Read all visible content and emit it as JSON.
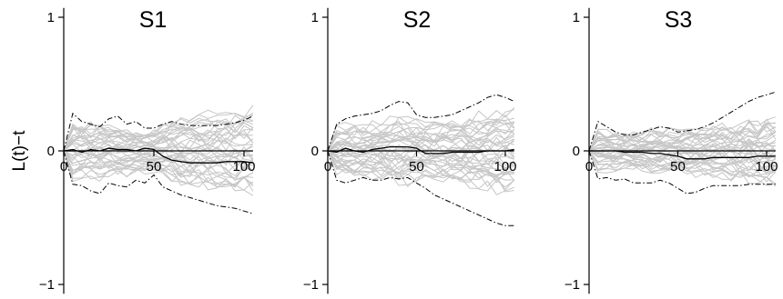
{
  "figure": {
    "ylabel": "L(t)−t",
    "colors": {
      "simulations": "#c6c6c6",
      "observed": "#000000",
      "envelope": "#000000",
      "axis": "#000000"
    }
  },
  "chart_data": [
    {
      "type": "line",
      "title": "S1",
      "xlabel": "",
      "ylabel": "L(t)−t",
      "xlim": [
        0,
        105
      ],
      "ylim": [
        -1,
        1
      ],
      "xticks": [
        0,
        50,
        100
      ],
      "yticks": [
        1,
        0,
        -1
      ],
      "xtick_labels": [
        "0",
        "50",
        "100"
      ],
      "ytick_labels": [
        "1",
        "0",
        "−1"
      ],
      "grid": false,
      "x": [
        0,
        5,
        10,
        15,
        20,
        25,
        30,
        35,
        40,
        45,
        50,
        55,
        60,
        65,
        70,
        75,
        80,
        85,
        90,
        95,
        100,
        105
      ],
      "series": [
        {
          "role": "observed",
          "values": [
            0,
            0.01,
            -0.01,
            0.01,
            0.0,
            0.02,
            0.01,
            0.01,
            0.0,
            0.02,
            0.01,
            -0.04,
            -0.07,
            -0.08,
            -0.09,
            -0.09,
            -0.09,
            -0.09,
            -0.08,
            -0.08,
            -0.08,
            -0.09
          ]
        },
        {
          "role": "upper-envelope",
          "values": [
            0,
            0.28,
            0.22,
            0.2,
            0.18,
            0.24,
            0.26,
            0.2,
            0.22,
            0.17,
            0.17,
            0.2,
            0.22,
            0.2,
            0.19,
            0.19,
            0.19,
            0.19,
            0.2,
            0.21,
            0.23,
            0.26
          ]
        },
        {
          "role": "lower-envelope",
          "values": [
            0,
            -0.25,
            -0.26,
            -0.3,
            -0.32,
            -0.24,
            -0.26,
            -0.27,
            -0.22,
            -0.24,
            -0.18,
            -0.27,
            -0.3,
            -0.33,
            -0.35,
            -0.37,
            -0.39,
            -0.41,
            -0.42,
            -0.43,
            -0.45,
            -0.47
          ]
        }
      ],
      "simulation_count": 39,
      "simulation_spread": [
        0,
        0.24,
        0.22,
        0.21,
        0.22,
        0.2,
        0.2,
        0.19,
        0.18,
        0.17,
        0.17,
        0.22,
        0.24,
        0.26,
        0.28,
        0.29,
        0.3,
        0.31,
        0.32,
        0.33,
        0.34,
        0.35
      ],
      "simulation_seed": 11
    },
    {
      "type": "line",
      "title": "S2",
      "xlabel": "",
      "ylabel": "",
      "xlim": [
        0,
        105
      ],
      "ylim": [
        -1,
        1
      ],
      "xticks": [
        0,
        50,
        100
      ],
      "yticks": [
        1,
        0,
        -1
      ],
      "xtick_labels": [
        "0",
        "50",
        "100"
      ],
      "ytick_labels": [
        "1",
        "0",
        "−1"
      ],
      "grid": false,
      "x": [
        0,
        5,
        10,
        15,
        20,
        25,
        30,
        35,
        40,
        45,
        50,
        55,
        60,
        65,
        70,
        75,
        80,
        85,
        90,
        95,
        100,
        105
      ],
      "series": [
        {
          "role": "observed",
          "values": [
            0,
            -0.01,
            0.02,
            0.0,
            -0.01,
            0.01,
            0.02,
            0.03,
            0.03,
            0.03,
            0.02,
            -0.02,
            -0.02,
            -0.02,
            -0.01,
            -0.01,
            -0.01,
            -0.01,
            0.0,
            0.0,
            0.0,
            0.01
          ]
        },
        {
          "role": "upper-envelope",
          "values": [
            0,
            0.2,
            0.24,
            0.26,
            0.27,
            0.28,
            0.3,
            0.34,
            0.37,
            0.36,
            0.27,
            0.25,
            0.25,
            0.26,
            0.27,
            0.3,
            0.33,
            0.36,
            0.4,
            0.42,
            0.4,
            0.37
          ]
        },
        {
          "role": "lower-envelope",
          "values": [
            0,
            -0.22,
            -0.24,
            -0.22,
            -0.2,
            -0.22,
            -0.22,
            -0.2,
            -0.21,
            -0.2,
            -0.24,
            -0.28,
            -0.33,
            -0.36,
            -0.39,
            -0.42,
            -0.45,
            -0.48,
            -0.51,
            -0.54,
            -0.56,
            -0.56
          ]
        }
      ],
      "simulation_count": 39,
      "simulation_spread": [
        0,
        0.19,
        0.21,
        0.21,
        0.21,
        0.22,
        0.23,
        0.25,
        0.27,
        0.27,
        0.24,
        0.23,
        0.23,
        0.24,
        0.25,
        0.26,
        0.27,
        0.29,
        0.31,
        0.33,
        0.34,
        0.34
      ],
      "simulation_seed": 29
    },
    {
      "type": "line",
      "title": "S3",
      "xlabel": "",
      "ylabel": "",
      "xlim": [
        0,
        105
      ],
      "ylim": [
        -1,
        1
      ],
      "xticks": [
        0,
        50,
        100
      ],
      "yticks": [
        1,
        0,
        -1
      ],
      "xtick_labels": [
        "0",
        "50",
        "100"
      ],
      "ytick_labels": [
        "1",
        "0",
        "−1"
      ],
      "grid": false,
      "x": [
        0,
        5,
        10,
        15,
        20,
        25,
        30,
        35,
        40,
        45,
        50,
        55,
        60,
        65,
        70,
        75,
        80,
        85,
        90,
        95,
        100,
        105
      ],
      "series": [
        {
          "role": "observed",
          "values": [
            0,
            0.0,
            0.0,
            0.0,
            -0.01,
            -0.01,
            -0.01,
            -0.02,
            -0.02,
            -0.03,
            -0.04,
            -0.06,
            -0.06,
            -0.06,
            -0.05,
            -0.05,
            -0.05,
            -0.05,
            -0.05,
            -0.04,
            -0.04,
            -0.04
          ]
        },
        {
          "role": "upper-envelope",
          "values": [
            0,
            0.22,
            0.18,
            0.14,
            0.12,
            0.12,
            0.14,
            0.16,
            0.18,
            0.17,
            0.14,
            0.15,
            0.16,
            0.18,
            0.21,
            0.25,
            0.29,
            0.33,
            0.37,
            0.4,
            0.42,
            0.44
          ]
        },
        {
          "role": "lower-envelope",
          "values": [
            0,
            -0.21,
            -0.2,
            -0.22,
            -0.21,
            -0.24,
            -0.24,
            -0.24,
            -0.22,
            -0.24,
            -0.28,
            -0.32,
            -0.31,
            -0.28,
            -0.26,
            -0.26,
            -0.26,
            -0.26,
            -0.25,
            -0.25,
            -0.25,
            -0.25
          ]
        }
      ],
      "simulation_count": 39,
      "simulation_spread": [
        0,
        0.17,
        0.16,
        0.15,
        0.14,
        0.15,
        0.16,
        0.17,
        0.17,
        0.17,
        0.17,
        0.19,
        0.19,
        0.19,
        0.2,
        0.21,
        0.22,
        0.23,
        0.24,
        0.25,
        0.26,
        0.27
      ],
      "simulation_seed": 53
    }
  ]
}
